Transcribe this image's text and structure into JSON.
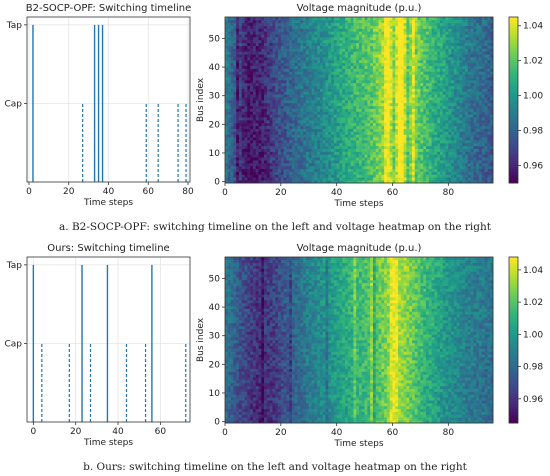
{
  "panels": [
    {
      "caption": "a. B2-SOCP-OPF: switching timeline on the left and voltage heatmap on the right",
      "timeline": {
        "type": "timeline",
        "title": "B2-SOCP-OPF: Switching timeline",
        "xlabel": "Time steps",
        "xlim": [
          -1,
          81
        ],
        "xticks": [
          0,
          20,
          40,
          60,
          80
        ],
        "yticks": [
          {
            "label": "Tap",
            "value": 1.0
          },
          {
            "label": "Cap",
            "value": 0.5
          }
        ],
        "ylim": [
          0,
          1.05
        ],
        "grid": true,
        "tap_events": [
          2,
          33,
          35,
          37
        ],
        "cap_events": [
          27,
          59,
          65,
          75,
          79
        ]
      },
      "heatmap": {
        "type": "heatmap",
        "title": "Voltage magnitude (p.u.)",
        "xlabel": "Time steps",
        "ylabel": "Bus index",
        "xlim": [
          0,
          96
        ],
        "ylim": [
          0,
          58
        ],
        "xticks": [
          0,
          20,
          40,
          60,
          80
        ],
        "yticks": [
          0,
          10,
          20,
          30,
          40,
          50
        ],
        "rows": 58,
        "cols": 96,
        "colorbar": {
          "min": 0.95,
          "max": 1.045,
          "ticks": [
            "0.96",
            "0.98",
            "1.00",
            "1.02",
            "1.04"
          ],
          "tick_values": [
            0.96,
            0.98,
            1.0,
            1.02,
            1.04
          ]
        },
        "column_profile": [
          {
            "t": 0,
            "v": 0.99
          },
          {
            "t": 4,
            "v": 0.97
          },
          {
            "t": 8,
            "v": 0.955
          },
          {
            "t": 14,
            "v": 0.962
          },
          {
            "t": 18,
            "v": 0.972
          },
          {
            "t": 24,
            "v": 0.982
          },
          {
            "t": 30,
            "v": 0.99
          },
          {
            "t": 36,
            "v": 0.998
          },
          {
            "t": 44,
            "v": 1.01
          },
          {
            "t": 52,
            "v": 1.02
          },
          {
            "t": 58,
            "v": 1.035
          },
          {
            "t": 62,
            "v": 1.04
          },
          {
            "t": 66,
            "v": 1.03
          },
          {
            "t": 72,
            "v": 1.015
          },
          {
            "t": 80,
            "v": 1.0
          },
          {
            "t": 88,
            "v": 0.985
          },
          {
            "t": 96,
            "v": 0.978
          }
        ],
        "bright_columns": [
          57,
          58,
          62,
          63,
          67
        ],
        "dark_columns": [
          4,
          60,
          65
        ]
      }
    },
    {
      "caption": "b. Ours: switching timeline on the left and voltage heatmap on the right",
      "timeline": {
        "type": "timeline",
        "title": "Ours: Switching timeline",
        "xlabel": "Time steps",
        "xlim": [
          -3,
          74
        ],
        "xticks": [
          0,
          20,
          40,
          60
        ],
        "yticks": [
          {
            "label": "Tap",
            "value": 1.0
          },
          {
            "label": "Cap",
            "value": 0.5
          }
        ],
        "ylim": [
          0,
          1.05
        ],
        "grid": true,
        "tap_events": [
          0,
          23,
          35,
          56
        ],
        "cap_events": [
          4,
          17,
          27,
          44,
          53,
          72
        ]
      },
      "heatmap": {
        "type": "heatmap",
        "title": "Voltage magnitude (p.u.)",
        "xlabel": "Time steps",
        "ylabel": "Bus index",
        "xlim": [
          0,
          96
        ],
        "ylim": [
          0,
          58
        ],
        "xticks": [
          0,
          20,
          40,
          60,
          80
        ],
        "yticks": [
          0,
          10,
          20,
          30,
          40,
          50
        ],
        "rows": 58,
        "cols": 96,
        "colorbar": {
          "min": 0.945,
          "max": 1.048,
          "ticks": [
            "0.96",
            "0.98",
            "1.00",
            "1.02",
            "1.04"
          ],
          "tick_values": [
            0.96,
            0.98,
            1.0,
            1.02,
            1.04
          ]
        },
        "column_profile": [
          {
            "t": 0,
            "v": 0.985
          },
          {
            "t": 6,
            "v": 0.968
          },
          {
            "t": 12,
            "v": 0.958
          },
          {
            "t": 18,
            "v": 0.965
          },
          {
            "t": 24,
            "v": 0.978
          },
          {
            "t": 30,
            "v": 0.99
          },
          {
            "t": 38,
            "v": 1.0
          },
          {
            "t": 46,
            "v": 1.012
          },
          {
            "t": 54,
            "v": 1.02
          },
          {
            "t": 60,
            "v": 1.035
          },
          {
            "t": 64,
            "v": 1.03
          },
          {
            "t": 70,
            "v": 1.015
          },
          {
            "t": 78,
            "v": 1.0
          },
          {
            "t": 86,
            "v": 0.99
          },
          {
            "t": 96,
            "v": 0.982
          }
        ],
        "bright_columns": [
          46,
          52,
          59,
          60,
          61
        ],
        "dark_columns": [
          13,
          23,
          36,
          53
        ]
      }
    }
  ]
}
